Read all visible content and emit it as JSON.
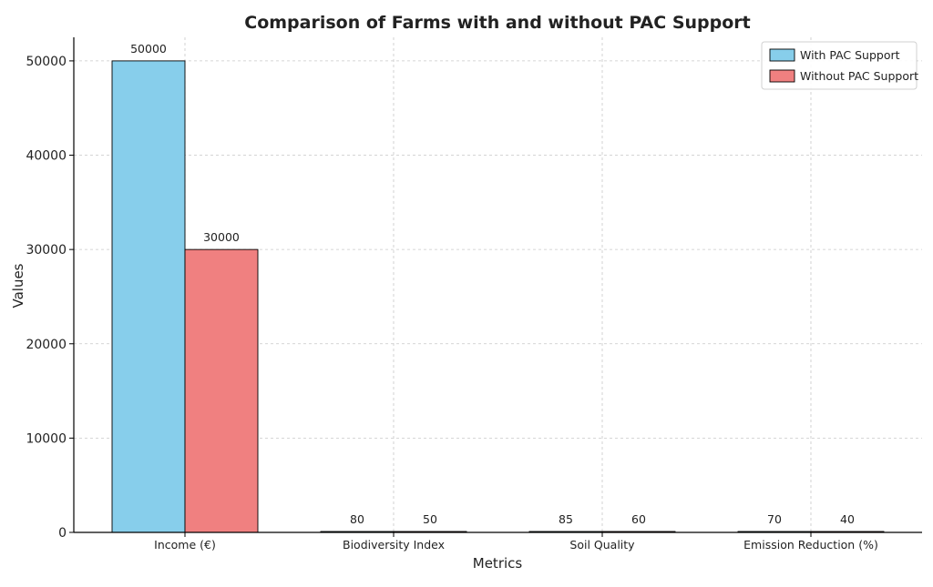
{
  "chart_data": {
    "type": "bar",
    "title": "Comparison of Farms with and without PAC Support",
    "xlabel": "Metrics",
    "ylabel": "Values",
    "categories": [
      "Income (€)",
      "Biodiversity Index",
      "Soil Quality",
      "Emission Reduction (%)"
    ],
    "series": [
      {
        "name": "With PAC Support",
        "values": [
          50000,
          80,
          85,
          70
        ],
        "color": "#87CEEB"
      },
      {
        "name": "Without PAC Support",
        "values": [
          30000,
          50,
          60,
          40
        ],
        "color": "#F08080"
      }
    ],
    "ylim": [
      0,
      52500
    ],
    "yticks": [
      0,
      10000,
      20000,
      30000,
      40000,
      50000
    ],
    "grid": true,
    "legend_position": "top-right"
  }
}
